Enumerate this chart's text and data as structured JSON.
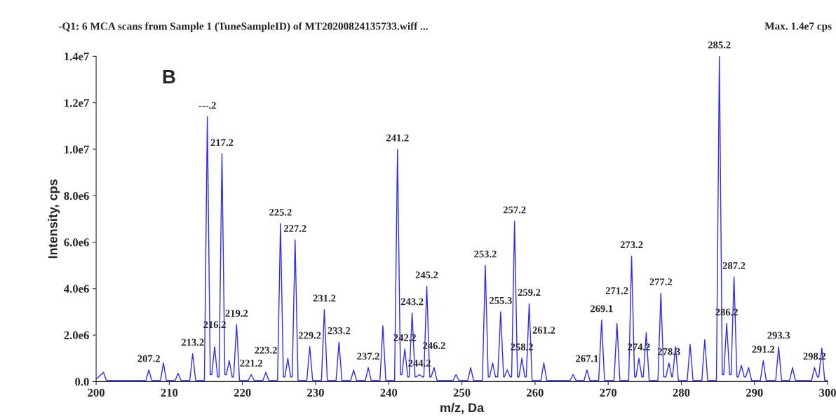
{
  "chart_data": {
    "type": "line",
    "title": "-Q1: 6 MCA scans from Sample 1 (TuneSampleID) of MT20200824135733.wiff ...",
    "xlabel": "m/z, Da",
    "ylabel": "Intensity, cps",
    "xlim": [
      200,
      300
    ],
    "xticks": [
      200,
      210,
      220,
      230,
      240,
      250,
      260,
      270,
      280,
      290,
      300
    ],
    "ylim": [
      0,
      14000000
    ],
    "yticks": [
      {
        "value": 0,
        "label": "0.0"
      },
      {
        "value": 2000000,
        "label": "2.0e6"
      },
      {
        "value": 4000000,
        "label": "4.0e6"
      },
      {
        "value": 6000000,
        "label": "6.0e6"
      },
      {
        "value": 8000000,
        "label": "8.0e6"
      },
      {
        "value": 10000000,
        "label": "1.0e7"
      },
      {
        "value": 12000000,
        "label": "1.2e7"
      },
      {
        "value": 14000000,
        "label": "1.4e7"
      }
    ],
    "grid": false,
    "series": [
      {
        "color": "#2b2bff",
        "line_style": "solid",
        "x": [
          200.0,
          201.0,
          201.4,
          206.8,
          207.2,
          207.6,
          208.8,
          209.2,
          209.6,
          210.8,
          211.2,
          211.6,
          212.8,
          213.2,
          213.6,
          214.8,
          215.2,
          215.6,
          215.8,
          216.2,
          216.6,
          216.8,
          217.2,
          217.6,
          217.8,
          218.2,
          218.6,
          218.8,
          219.2,
          219.6,
          220.8,
          221.2,
          221.6,
          222.8,
          223.2,
          223.6,
          224.8,
          225.2,
          225.6,
          225.8,
          226.2,
          226.6,
          226.8,
          227.2,
          227.6,
          228.8,
          229.2,
          229.6,
          230.8,
          231.2,
          231.6,
          232.8,
          233.2,
          233.6,
          234.8,
          235.2,
          235.6,
          236.8,
          237.2,
          237.6,
          238.8,
          239.2,
          239.6,
          240.8,
          241.2,
          241.6,
          241.8,
          242.2,
          242.6,
          242.8,
          243.2,
          243.6,
          243.8,
          244.2,
          244.6,
          244.8,
          245.2,
          245.6,
          245.8,
          246.2,
          246.6,
          248.8,
          249.2,
          249.6,
          250.8,
          251.2,
          251.6,
          252.8,
          253.2,
          253.6,
          253.8,
          254.2,
          254.6,
          254.9,
          255.3,
          255.7,
          255.8,
          256.2,
          256.6,
          256.8,
          257.2,
          257.6,
          257.8,
          258.2,
          258.6,
          258.8,
          259.2,
          259.6,
          260.8,
          261.2,
          261.6,
          264.8,
          265.2,
          265.6,
          266.7,
          267.1,
          267.5,
          268.7,
          269.1,
          269.5,
          270.8,
          271.2,
          271.6,
          272.8,
          273.2,
          273.6,
          273.8,
          274.2,
          274.6,
          274.8,
          275.2,
          275.6,
          276.8,
          277.2,
          277.6,
          277.9,
          278.3,
          278.7,
          278.8,
          279.2,
          279.6,
          280.8,
          281.2,
          281.6,
          282.8,
          283.2,
          283.6,
          284.8,
          285.2,
          285.6,
          285.8,
          286.2,
          286.6,
          286.8,
          287.2,
          287.6,
          287.8,
          288.2,
          288.6,
          288.8,
          289.2,
          289.6,
          290.8,
          291.2,
          291.6,
          292.9,
          293.3,
          293.7,
          294.8,
          295.2,
          295.6,
          297.8,
          298.2,
          298.6,
          298.8,
          299.2,
          299.6,
          300.0
        ],
        "values": [
          100000,
          400000,
          50000,
          50000,
          500000,
          50000,
          50000,
          800000,
          50000,
          50000,
          350000,
          50000,
          50000,
          1200000,
          50000,
          50000,
          11400000,
          300000,
          300000,
          1500000,
          200000,
          200000,
          9800000,
          300000,
          300000,
          900000,
          200000,
          200000,
          2450000,
          50000,
          50000,
          300000,
          50000,
          50000,
          400000,
          50000,
          50000,
          6800000,
          200000,
          200000,
          1000000,
          200000,
          200000,
          6100000,
          50000,
          50000,
          1500000,
          50000,
          50000,
          3100000,
          50000,
          50000,
          1700000,
          50000,
          50000,
          500000,
          50000,
          50000,
          600000,
          50000,
          50000,
          2400000,
          50000,
          50000,
          10000000,
          300000,
          300000,
          1400000,
          200000,
          200000,
          2950000,
          200000,
          200000,
          300000,
          200000,
          200000,
          4100000,
          200000,
          200000,
          600000,
          50000,
          50000,
          300000,
          50000,
          50000,
          600000,
          50000,
          50000,
          5000000,
          200000,
          200000,
          800000,
          200000,
          200000,
          3000000,
          200000,
          200000,
          500000,
          200000,
          200000,
          6900000,
          200000,
          200000,
          1000000,
          200000,
          200000,
          3350000,
          50000,
          50000,
          800000,
          50000,
          50000,
          300000,
          50000,
          50000,
          500000,
          50000,
          50000,
          2650000,
          50000,
          50000,
          2500000,
          50000,
          50000,
          5400000,
          200000,
          200000,
          1000000,
          200000,
          200000,
          2100000,
          50000,
          50000,
          3800000,
          200000,
          200000,
          800000,
          200000,
          200000,
          1500000,
          50000,
          50000,
          1600000,
          50000,
          50000,
          1800000,
          50000,
          50000,
          14000000,
          300000,
          300000,
          2500000,
          300000,
          300000,
          4500000,
          200000,
          200000,
          700000,
          200000,
          200000,
          600000,
          50000,
          50000,
          900000,
          50000,
          50000,
          1500000,
          50000,
          50000,
          600000,
          50000,
          50000,
          600000,
          200000,
          200000,
          1450000,
          50000,
          50000
        ]
      }
    ],
    "annotations": [
      {
        "text": "---.2",
        "x": 215.2,
        "y": 11400000
      },
      {
        "text": "217.2",
        "x": 217.2,
        "y": 9800000
      },
      {
        "text": "207.2",
        "x": 207.2,
        "y": 500000
      },
      {
        "text": "213.2",
        "x": 213.2,
        "y": 1200000
      },
      {
        "text": "216.2",
        "x": 216.2,
        "y": 1500000
      },
      {
        "text": "219.2",
        "x": 219.2,
        "y": 2450000
      },
      {
        "text": "221.2",
        "x": 221.2,
        "y": 300000
      },
      {
        "text": "223.2",
        "x": 223.2,
        "y": 400000
      },
      {
        "text": "225.2",
        "x": 225.2,
        "y": 6800000
      },
      {
        "text": "227.2",
        "x": 227.2,
        "y": 6100000
      },
      {
        "text": "229.2",
        "x": 229.2,
        "y": 1500000
      },
      {
        "text": "231.2",
        "x": 231.2,
        "y": 3100000
      },
      {
        "text": "233.2",
        "x": 233.2,
        "y": 1700000
      },
      {
        "text": "237.2",
        "x": 237.2,
        "y": 600000
      },
      {
        "text": "241.2",
        "x": 241.2,
        "y": 10000000
      },
      {
        "text": "242.2",
        "x": 242.2,
        "y": 1400000
      },
      {
        "text": "243.2",
        "x": 243.2,
        "y": 2950000
      },
      {
        "text": "244.2",
        "x": 244.2,
        "y": 300000
      },
      {
        "text": "245.2",
        "x": 245.2,
        "y": 4100000
      },
      {
        "text": "246.2",
        "x": 246.2,
        "y": 600000
      },
      {
        "text": "253.2",
        "x": 253.2,
        "y": 5000000
      },
      {
        "text": "255.3",
        "x": 255.3,
        "y": 3000000
      },
      {
        "text": "257.2",
        "x": 257.2,
        "y": 6900000
      },
      {
        "text": "258.2",
        "x": 258.2,
        "y": 1000000
      },
      {
        "text": "259.2",
        "x": 259.2,
        "y": 3350000
      },
      {
        "text": "261.2",
        "x": 261.2,
        "y": 800000
      },
      {
        "text": "267.1",
        "x": 267.1,
        "y": 500000
      },
      {
        "text": "269.1",
        "x": 269.1,
        "y": 2650000
      },
      {
        "text": "271.2",
        "x": 271.2,
        "y": 2500000
      },
      {
        "text": "273.2",
        "x": 273.2,
        "y": 5400000
      },
      {
        "text": "274.2",
        "x": 274.2,
        "y": 1000000
      },
      {
        "text": "277.2",
        "x": 277.2,
        "y": 3800000
      },
      {
        "text": "278.3",
        "x": 278.3,
        "y": 800000
      },
      {
        "text": "285.2",
        "x": 285.2,
        "y": 14000000
      },
      {
        "text": "286.2",
        "x": 286.2,
        "y": 2500000
      },
      {
        "text": "287.2",
        "x": 287.2,
        "y": 4500000
      },
      {
        "text": "291.2",
        "x": 291.2,
        "y": 900000
      },
      {
        "text": "293.3",
        "x": 293.3,
        "y": 1500000
      },
      {
        "text": "298.2",
        "x": 298.2,
        "y": 600000
      },
      "B",
      "Max. 1.4e7 cps"
    ]
  }
}
